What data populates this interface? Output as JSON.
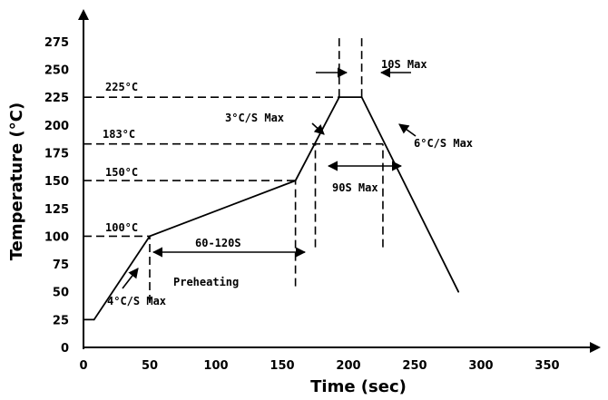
{
  "chart_data": {
    "type": "line",
    "xlabel": "Time (sec)",
    "ylabel": "Temperature (°C)",
    "xlim": [
      0,
      360
    ],
    "ylim": [
      0,
      290
    ],
    "x_ticks": [
      0,
      50,
      100,
      150,
      200,
      250,
      300,
      350
    ],
    "y_ticks": [
      0,
      25,
      50,
      75,
      100,
      125,
      150,
      175,
      200,
      225,
      250,
      275
    ],
    "grid": false,
    "series": [
      {
        "x": [
          0,
          8,
          50,
          160,
          193,
          210,
          283
        ],
        "y": [
          25,
          25,
          100,
          150,
          225,
          225,
          50
        ]
      }
    ],
    "reference_lines": {
      "horizontal": [
        {
          "label": "225°C",
          "y": 225,
          "x_end": 193
        },
        {
          "label": "183°C",
          "y": 183,
          "x_end": 226
        },
        {
          "label": "150°C",
          "y": 150,
          "x_end": 160
        },
        {
          "label": "100°C",
          "y": 100,
          "x_end": 50
        }
      ],
      "vertical": [
        {
          "x": 50,
          "y_from": 40,
          "y_to": 100
        },
        {
          "x": 160,
          "y_from": 55,
          "y_to": 150
        },
        {
          "x": 175,
          "y_from": 90,
          "y_to": 183
        },
        {
          "x": 226,
          "y_from": 90,
          "y_to": 183
        },
        {
          "x": 193,
          "y_from": 225,
          "y_to": 280
        },
        {
          "x": 210,
          "y_from": 225,
          "y_to": 280
        }
      ]
    },
    "annotations": {
      "preheat_range": "60-120S",
      "preheating": "Preheating",
      "time_above_183": "90S Max",
      "time_at_peak": "10S Max",
      "ramp_up_1": "4°C/S Max",
      "ramp_up_2": "3°C/S Max",
      "ramp_down": "6°C/S Max"
    }
  }
}
